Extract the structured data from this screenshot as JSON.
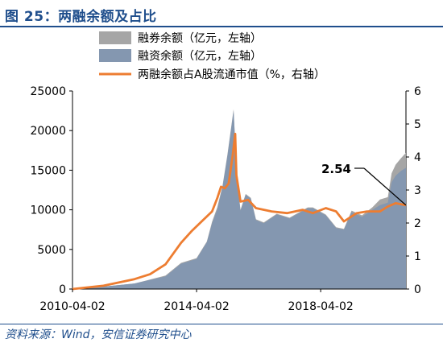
{
  "figure": {
    "title": "图 25：两融余额及占比",
    "source": "资料来源：Wind，安信证券研究中心"
  },
  "colors": {
    "margin_short": "#a6a6a6",
    "margin_finance": "#8497b0",
    "ratio_line": "#ed7d31",
    "title_blue": "#1f4e8c"
  },
  "chart_data": {
    "type": "area",
    "legend_position": "top",
    "x_ticks": [
      "2010-04-02",
      "2014-04-02",
      "2018-04-02"
    ],
    "x_range": [
      "2010-04-02",
      "2020-12-31"
    ],
    "y_left": {
      "range": [
        0,
        25000
      ],
      "ticks": [
        0,
        5000,
        10000,
        15000,
        20000,
        25000
      ]
    },
    "y_right": {
      "range": [
        0,
        6
      ],
      "ticks": [
        0,
        1,
        2,
        3,
        4,
        5,
        6
      ]
    },
    "annotation": {
      "text": "2.54",
      "x": "2020-12-31",
      "y": 2.54
    },
    "series": [
      {
        "name": "融券余额（亿元，左轴）",
        "type": "area",
        "axis": "left",
        "points": [
          [
            "2010-04-02",
            0
          ],
          [
            "2011-04-01",
            300
          ],
          [
            "2012-04-01",
            700
          ],
          [
            "2013-04-01",
            1700
          ],
          [
            "2013-10-01",
            3300
          ],
          [
            "2014-04-01",
            3900
          ],
          [
            "2014-08-01",
            6000
          ],
          [
            "2014-10-01",
            8500
          ],
          [
            "2014-12-01",
            10300
          ],
          [
            "2015-02-01",
            13000
          ],
          [
            "2015-04-01",
            17000
          ],
          [
            "2015-05-15",
            20500
          ],
          [
            "2015-06-12",
            22700
          ],
          [
            "2015-07-01",
            18600
          ],
          [
            "2015-07-20",
            14000
          ],
          [
            "2015-09-01",
            10000
          ],
          [
            "2015-11-01",
            12000
          ],
          [
            "2016-01-01",
            11500
          ],
          [
            "2016-03-01",
            8800
          ],
          [
            "2016-06-01",
            8400
          ],
          [
            "2016-11-01",
            9500
          ],
          [
            "2017-04-01",
            9000
          ],
          [
            "2017-11-01",
            10300
          ],
          [
            "2018-01-01",
            10300
          ],
          [
            "2018-06-01",
            9400
          ],
          [
            "2018-10-01",
            7800
          ],
          [
            "2019-01-01",
            7600
          ],
          [
            "2019-04-01",
            9900
          ],
          [
            "2019-08-01",
            9300
          ],
          [
            "2019-12-01",
            10300
          ],
          [
            "2020-03-01",
            11300
          ],
          [
            "2020-06-01",
            11600
          ],
          [
            "2020-07-15",
            14600
          ],
          [
            "2020-09-01",
            15700
          ],
          [
            "2020-11-01",
            16500
          ],
          [
            "2020-12-31",
            17200
          ]
        ]
      },
      {
        "name": "融资余额（亿元，左轴）",
        "type": "area",
        "axis": "left",
        "points": [
          [
            "2010-04-02",
            0
          ],
          [
            "2011-04-01",
            300
          ],
          [
            "2012-04-01",
            700
          ],
          [
            "2013-04-01",
            1600
          ],
          [
            "2013-10-01",
            3200
          ],
          [
            "2014-04-01",
            3800
          ],
          [
            "2014-08-01",
            5900
          ],
          [
            "2014-10-01",
            8300
          ],
          [
            "2014-12-01",
            10000
          ],
          [
            "2015-02-01",
            12800
          ],
          [
            "2015-04-01",
            16800
          ],
          [
            "2015-05-15",
            20300
          ],
          [
            "2015-06-12",
            22500
          ],
          [
            "2015-07-01",
            18400
          ],
          [
            "2015-07-20",
            13800
          ],
          [
            "2015-09-01",
            9900
          ],
          [
            "2015-11-01",
            11900
          ],
          [
            "2016-01-01",
            11400
          ],
          [
            "2016-03-01",
            8700
          ],
          [
            "2016-06-01",
            8300
          ],
          [
            "2016-11-01",
            9400
          ],
          [
            "2017-04-01",
            8900
          ],
          [
            "2017-11-01",
            10200
          ],
          [
            "2018-01-01",
            10200
          ],
          [
            "2018-06-01",
            9300
          ],
          [
            "2018-10-01",
            7700
          ],
          [
            "2019-01-01",
            7500
          ],
          [
            "2019-04-01",
            9700
          ],
          [
            "2019-08-01",
            9100
          ],
          [
            "2019-12-01",
            10000
          ],
          [
            "2020-03-01",
            10600
          ],
          [
            "2020-06-01",
            10900
          ],
          [
            "2020-07-15",
            13500
          ],
          [
            "2020-09-01",
            14300
          ],
          [
            "2020-11-01",
            14900
          ],
          [
            "2020-12-31",
            15300
          ]
        ]
      },
      {
        "name": "两融余额占A股流通市值（%，右轴）",
        "type": "line",
        "axis": "right",
        "points": [
          [
            "2010-04-02",
            0
          ],
          [
            "2011-04-01",
            0.1
          ],
          [
            "2012-04-01",
            0.3
          ],
          [
            "2012-10-01",
            0.45
          ],
          [
            "2013-04-01",
            0.75
          ],
          [
            "2013-10-01",
            1.4
          ],
          [
            "2014-02-01",
            1.75
          ],
          [
            "2014-06-01",
            2.05
          ],
          [
            "2014-10-01",
            2.35
          ],
          [
            "2014-12-01",
            2.75
          ],
          [
            "2015-01-15",
            3.1
          ],
          [
            "2015-03-01",
            3.05
          ],
          [
            "2015-04-15",
            3.2
          ],
          [
            "2015-06-01",
            4.05
          ],
          [
            "2015-07-01",
            4.7
          ],
          [
            "2015-07-15",
            3.45
          ],
          [
            "2015-09-01",
            2.65
          ],
          [
            "2015-12-01",
            2.7
          ],
          [
            "2016-03-01",
            2.45
          ],
          [
            "2016-09-01",
            2.35
          ],
          [
            "2017-03-01",
            2.3
          ],
          [
            "2017-09-01",
            2.4
          ],
          [
            "2018-01-01",
            2.3
          ],
          [
            "2018-06-01",
            2.45
          ],
          [
            "2018-10-01",
            2.35
          ],
          [
            "2019-01-01",
            2.05
          ],
          [
            "2019-06-01",
            2.3
          ],
          [
            "2019-10-01",
            2.35
          ],
          [
            "2020-03-01",
            2.35
          ],
          [
            "2020-06-01",
            2.5
          ],
          [
            "2020-09-01",
            2.6
          ],
          [
            "2020-12-31",
            2.54
          ]
        ]
      }
    ]
  }
}
